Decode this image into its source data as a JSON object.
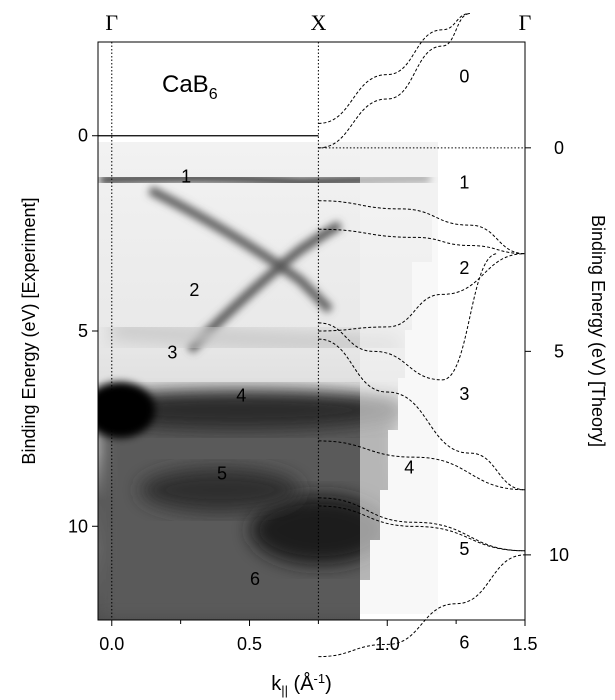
{
  "chart_data": {
    "type": "heatmap",
    "title": "",
    "material": {
      "base": "CaB",
      "sub": "6"
    },
    "symmetry_points": [
      {
        "label": "Γ",
        "k": 0.0
      },
      {
        "label": "X",
        "k": 0.75
      },
      {
        "label": "Γ",
        "k": 1.5
      }
    ],
    "xlabel": {
      "base": "k",
      "sub": "||",
      "unit_open": "  (Å",
      "unit_sup": "-1",
      "unit_close": ")"
    },
    "ylabel_left": "Binding Energy (eV)  [Experiment]",
    "ylabel_right": "Binding Energy (eV)  [Theory]",
    "x_ticks": [
      "0.0",
      "0.5",
      "1.0",
      "1.5"
    ],
    "xlim": [
      -0.05,
      1.5
    ],
    "y_left": {
      "ticks": [
        "0",
        "5",
        "10"
      ],
      "ylim": [
        -2.4,
        12.4
      ],
      "reversed": true
    },
    "y_right": {
      "ticks": [
        "0",
        "5",
        "10"
      ],
      "ylim": [
        -2.6,
        11.6
      ],
      "reversed": true
    },
    "band_labels_experiment": [
      {
        "label": "1",
        "k": 0.27,
        "E": 1.2
      },
      {
        "label": "2",
        "k": 0.3,
        "E": 4.1
      },
      {
        "label": "3",
        "k": 0.22,
        "E": 5.7
      },
      {
        "label": "4",
        "k": 0.47,
        "E": 6.8
      },
      {
        "label": "5",
        "k": 0.4,
        "E": 8.8
      },
      {
        "label": "6",
        "k": 0.52,
        "E": 11.5
      }
    ],
    "band_labels_theory": [
      {
        "label": "0",
        "k": 1.28,
        "E": -1.6
      },
      {
        "label": "1",
        "k": 1.28,
        "E": 1.0
      },
      {
        "label": "2",
        "k": 1.28,
        "E": 3.1
      },
      {
        "label": "3",
        "k": 1.28,
        "E": 6.2
      },
      {
        "label": "4",
        "k": 1.08,
        "E": 8.0
      },
      {
        "label": "5",
        "k": 1.28,
        "E": 10.0
      },
      {
        "label": "6",
        "k": 1.28,
        "E": 12.3
      }
    ],
    "theory_bands": [
      {
        "name": "band 0",
        "points": [
          [
            0.75,
            0.0
          ],
          [
            1.0,
            -1.2
          ],
          [
            1.2,
            -2.5
          ],
          [
            1.3,
            -3.3
          ]
        ]
      },
      {
        "name": "band 0b",
        "points": [
          [
            0.75,
            -0.6
          ],
          [
            1.0,
            -1.8
          ],
          [
            1.2,
            -2.9
          ],
          [
            1.3,
            -3.3
          ]
        ]
      },
      {
        "name": "band 1",
        "points": [
          [
            0.75,
            1.3
          ],
          [
            1.05,
            1.5
          ],
          [
            1.3,
            1.9
          ],
          [
            1.5,
            2.6
          ]
        ]
      },
      {
        "name": "band 1b",
        "points": [
          [
            0.75,
            2.0
          ],
          [
            1.1,
            2.2
          ],
          [
            1.3,
            2.4
          ],
          [
            1.5,
            2.6
          ]
        ]
      },
      {
        "name": "band 2",
        "points": [
          [
            0.75,
            4.5
          ],
          [
            1.0,
            4.4
          ],
          [
            1.2,
            3.6
          ],
          [
            1.5,
            2.6
          ]
        ]
      },
      {
        "name": "band 2b",
        "points": [
          [
            0.75,
            4.3
          ],
          [
            0.95,
            5.0
          ],
          [
            1.2,
            5.7
          ],
          [
            1.4,
            2.6
          ]
        ]
      },
      {
        "name": "band 3",
        "points": [
          [
            0.75,
            4.7
          ],
          [
            1.0,
            6.0
          ],
          [
            1.3,
            7.5
          ],
          [
            1.5,
            8.4
          ]
        ]
      },
      {
        "name": "band 4",
        "points": [
          [
            0.75,
            7.2
          ],
          [
            1.1,
            7.6
          ],
          [
            1.5,
            8.4
          ]
        ]
      },
      {
        "name": "band 5",
        "points": [
          [
            0.75,
            8.6
          ],
          [
            1.1,
            9.2
          ],
          [
            1.5,
            9.9
          ]
        ]
      },
      {
        "name": "band 5b",
        "points": [
          [
            0.75,
            8.8
          ],
          [
            1.1,
            9.3
          ],
          [
            1.5,
            9.9
          ]
        ]
      },
      {
        "name": "band 6",
        "points": [
          [
            0.75,
            12.5
          ],
          [
            1.0,
            12.2
          ],
          [
            1.25,
            11.2
          ],
          [
            1.5,
            10.0
          ]
        ]
      }
    ],
    "experiment_intensity_note": [
      {
        "feature": "band 1 flat",
        "k_range": [
          0.0,
          1.15
        ],
        "E": 1.7
      },
      {
        "feature": "band 2 dispersing",
        "k_range": [
          0.15,
          0.75
        ],
        "E_range": [
          2.2,
          4.5
        ]
      },
      {
        "feature": "band 3 dispersing",
        "k_range": [
          0.1,
          0.75
        ],
        "E_range": [
          7.0,
          3.2
        ]
      },
      {
        "feature": "band 5 dark",
        "k_range": [
          -0.05,
          0.9
        ],
        "E": 8.4
      }
    ]
  }
}
